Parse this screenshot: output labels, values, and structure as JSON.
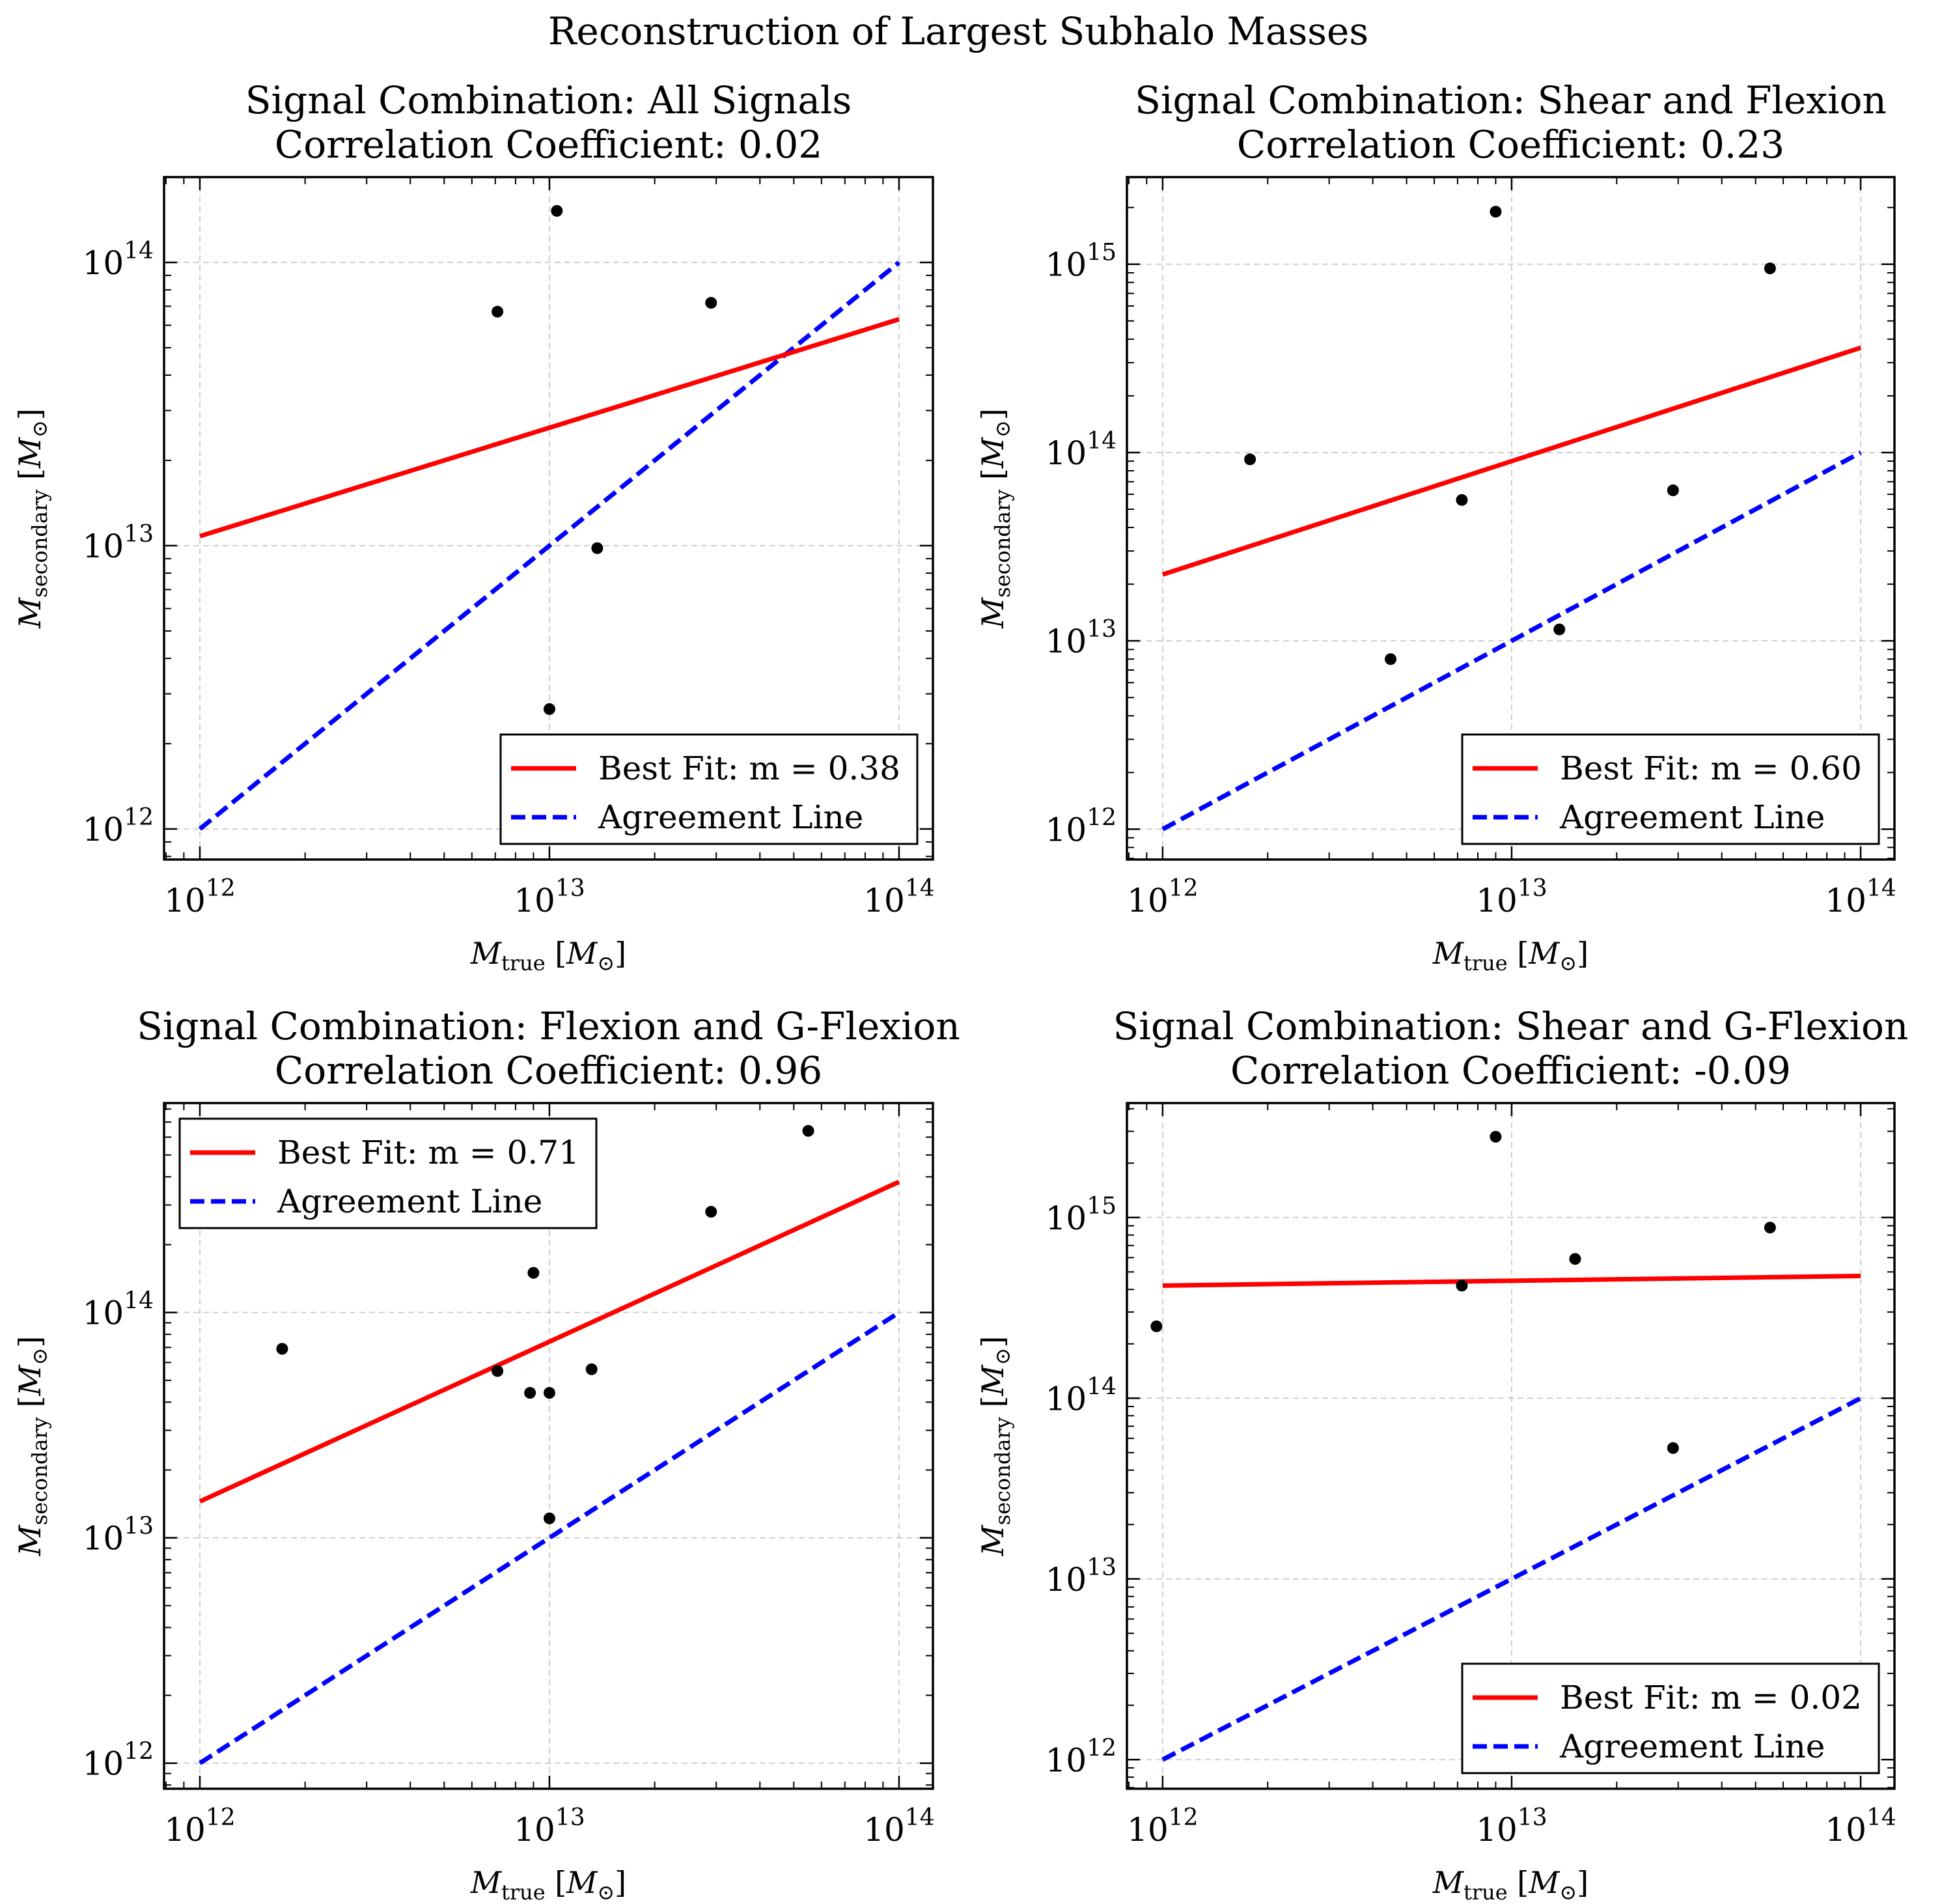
{
  "suptitle": "Reconstruction of Largest Subhalo Masses",
  "axis_labels": {
    "x_main": "M",
    "x_sub": "true",
    "x_unit_open": " [",
    "x_unit_main": "M",
    "x_unit_sub": "⊙",
    "x_unit_close": "]",
    "y_main": "M",
    "y_sub": "secondary",
    "y_unit_open": " [",
    "y_unit_main": "M",
    "y_unit_sub": "⊙",
    "y_unit_close": "]"
  },
  "tick_base": "10",
  "colors": {
    "fit": "#ff0000",
    "agreement": "#0000ff",
    "points": "#000000",
    "grid": "#b0b0b0"
  },
  "chart_data": [
    {
      "type": "scatter",
      "title_line1": "Signal Combination: All Signals",
      "title_line2": "Correlation Coefficient: 0.02",
      "xscale": "log",
      "yscale": "log",
      "xlim": [
        790000000000.0,
        125000000000000.0
      ],
      "ylim": [
        780000000000.0,
        200000000000000.0
      ],
      "xticks": [
        12,
        13,
        14
      ],
      "yticks": [
        12,
        13,
        14
      ],
      "grid": true,
      "legend_loc": "lower-right",
      "points": [
        [
          7100000000000.0,
          67000000000000.0
        ],
        [
          10500000000000.0,
          152000000000000.0
        ],
        [
          13700000000000.0,
          9800000000000.0
        ],
        [
          29000000000000.0,
          72000000000000.0
        ],
        [
          10000000000000.0,
          2650000000000.0
        ]
      ],
      "fit": {
        "label": "Best Fit: m = 0.38",
        "x": [
          1000000000000.0,
          100000000000000.0
        ],
        "y": [
          10800000000000.0,
          63000000000000.0
        ]
      },
      "agreement": {
        "label": "Agreement Line",
        "x": [
          1000000000000.0,
          100000000000000.0
        ],
        "y": [
          1000000000000.0,
          100000000000000.0
        ]
      }
    },
    {
      "type": "scatter",
      "title_line1": "Signal Combination: Shear and Flexion",
      "title_line2": "Correlation Coefficient: 0.23",
      "xscale": "log",
      "yscale": "log",
      "xlim": [
        790000000000.0,
        125000000000000.0
      ],
      "ylim": [
        690000000000.0,
        2900000000000000.0
      ],
      "xticks": [
        12,
        13,
        14
      ],
      "yticks": [
        12,
        13,
        14,
        15
      ],
      "grid": true,
      "legend_loc": "lower-right",
      "points": [
        [
          1780000000000.0,
          92000000000000.0
        ],
        [
          4500000000000.0,
          8000000000000.0
        ],
        [
          7200000000000.0,
          56000000000000.0
        ],
        [
          9000000000000.0,
          1900000000000000.0
        ],
        [
          13700000000000.0,
          11500000000000.0
        ],
        [
          29000000000000.0,
          63000000000000.0
        ],
        [
          55000000000000.0,
          950000000000000.0
        ]
      ],
      "fit": {
        "label": "Best Fit: m = 0.60",
        "x": [
          1000000000000.0,
          100000000000000.0
        ],
        "y": [
          22500000000000.0,
          360000000000000.0
        ]
      },
      "agreement": {
        "label": "Agreement Line",
        "x": [
          1000000000000.0,
          100000000000000.0
        ],
        "y": [
          1000000000000.0,
          100000000000000.0
        ]
      }
    },
    {
      "type": "scatter",
      "title_line1": "Signal Combination: Flexion and G-Flexion",
      "title_line2": "Correlation Coefficient: 0.96",
      "xscale": "log",
      "yscale": "log",
      "xlim": [
        790000000000.0,
        125000000000000.0
      ],
      "ylim": [
        770000000000.0,
        850000000000000.0
      ],
      "xticks": [
        12,
        13,
        14
      ],
      "yticks": [
        12,
        13,
        14
      ],
      "grid": true,
      "legend_loc": "upper-left",
      "points": [
        [
          1720000000000.0,
          69000000000000.0
        ],
        [
          7100000000000.0,
          55000000000000.0
        ],
        [
          8800000000000.0,
          44000000000000.0
        ],
        [
          9000000000000.0,
          150000000000000.0
        ],
        [
          10000000000000.0,
          44000000000000.0
        ],
        [
          10000000000000.0,
          12200000000000.0
        ],
        [
          13200000000000.0,
          56000000000000.0
        ],
        [
          29000000000000.0,
          280000000000000.0
        ],
        [
          55000000000000.0,
          640000000000000.0
        ]
      ],
      "fit": {
        "label": "Best Fit: m = 0.71",
        "x": [
          1000000000000.0,
          100000000000000.0
        ],
        "y": [
          14500000000000.0,
          380000000000000.0
        ]
      },
      "agreement": {
        "label": "Agreement Line",
        "x": [
          1000000000000.0,
          100000000000000.0
        ],
        "y": [
          1000000000000.0,
          100000000000000.0
        ]
      }
    },
    {
      "type": "scatter",
      "title_line1": "Signal Combination: Shear and G-Flexion",
      "title_line2": "Correlation Coefficient: -0.09",
      "xscale": "log",
      "yscale": "log",
      "xlim": [
        790000000000.0,
        125000000000000.0
      ],
      "ylim": [
        690000000000.0,
        4300000000000000.0
      ],
      "xticks": [
        12,
        13,
        14
      ],
      "yticks": [
        12,
        13,
        14,
        15
      ],
      "grid": true,
      "legend_loc": "lower-right",
      "points": [
        [
          960000000000.0,
          250000000000000.0
        ],
        [
          7200000000000.0,
          420000000000000.0
        ],
        [
          9000000000000.0,
          2800000000000000.0
        ],
        [
          15200000000000.0,
          590000000000000.0
        ],
        [
          29000000000000.0,
          53000000000000.0
        ],
        [
          55000000000000.0,
          880000000000000.0
        ]
      ],
      "fit": {
        "label": "Best Fit: m = 0.02",
        "x": [
          1000000000000.0,
          100000000000000.0
        ],
        "y": [
          420000000000000.0,
          475000000000000.0
        ]
      },
      "agreement": {
        "label": "Agreement Line",
        "x": [
          1000000000000.0,
          100000000000000.0
        ],
        "y": [
          1000000000000.0,
          100000000000000.0
        ]
      }
    }
  ]
}
